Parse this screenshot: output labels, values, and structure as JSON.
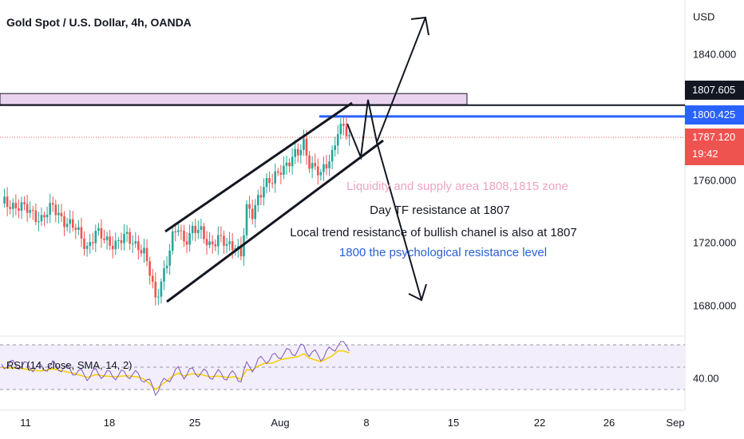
{
  "header": {
    "title": "Gold Spot / U.S. Dollar, 4h, OANDA"
  },
  "price_axis": {
    "currency": "USD",
    "ticks": [
      "1840.000",
      "1760.000",
      "1720.000",
      "1680.000"
    ],
    "tags": {
      "black": "1807.605",
      "blue": "1800.425",
      "red_price": "1787.120",
      "red_time": "19:42"
    },
    "rsi_tick": "40.00"
  },
  "time_axis": {
    "labels": [
      "11",
      "18",
      "25",
      "Aug",
      "8",
      "15",
      "22",
      "26",
      "Sep"
    ]
  },
  "rsi": {
    "label": "RSI (14, close, SMA, 14, 2)"
  },
  "annotations": {
    "liquidity": "Liquidity and supply area 1808,1815 zone",
    "day_tf": "Day TF resistance at 1807",
    "local_trend": "Local trend resistance of bullish chanel is also at 1807",
    "psych": "1800 the psychological resistance level"
  },
  "colors": {
    "up": "#26a69a",
    "down": "#ef5350",
    "blue_line": "#2962ff",
    "supply_zone": "#e9d3ef",
    "rsi_line": "#7e57c2",
    "rsi_sma": "#f5d000",
    "liquidity_text": "#f0a3c4",
    "psych_text": "#2a5fd6"
  },
  "chart_data": {
    "type": "candlestick",
    "symbol": "Gold Spot / U.S. Dollar",
    "interval": "4h",
    "y_ticks": [
      1840,
      1760,
      1720,
      1680
    ],
    "levels": {
      "black": 1807.605,
      "blue": 1800.425,
      "last": 1787.12
    },
    "supply_zone": [
      1808,
      1815
    ],
    "x_labels": [
      "11",
      "18",
      "25",
      "Aug",
      "8",
      "15",
      "22",
      "26",
      "Sep"
    ],
    "close_path": [
      [
        0,
        1745
      ],
      [
        6,
        1744
      ],
      [
        10,
        1739
      ],
      [
        14,
        1736
      ],
      [
        18,
        1742
      ],
      [
        22,
        1735
      ],
      [
        26,
        1728
      ],
      [
        30,
        1718
      ],
      [
        33,
        1726
      ],
      [
        36,
        1722
      ],
      [
        40,
        1720
      ],
      [
        44,
        1723
      ],
      [
        48,
        1719
      ],
      [
        50,
        1713
      ],
      [
        52,
        1700
      ],
      [
        54,
        1684
      ],
      [
        56,
        1697
      ],
      [
        58,
        1708
      ],
      [
        60,
        1722
      ],
      [
        62,
        1730
      ],
      [
        64,
        1722
      ],
      [
        67,
        1728
      ],
      [
        70,
        1726
      ],
      [
        73,
        1720
      ],
      [
        76,
        1722
      ],
      [
        79,
        1718
      ],
      [
        82,
        1720
      ],
      [
        84,
        1712
      ],
      [
        86,
        1740
      ],
      [
        88,
        1738
      ],
      [
        90,
        1750
      ],
      [
        92,
        1757
      ],
      [
        95,
        1758
      ],
      [
        98,
        1768
      ],
      [
        101,
        1772
      ],
      [
        104,
        1776
      ],
      [
        106,
        1784
      ],
      [
        108,
        1772
      ],
      [
        110,
        1767
      ],
      [
        112,
        1762
      ],
      [
        114,
        1770
      ],
      [
        116,
        1778
      ],
      [
        118,
        1792
      ],
      [
        120,
        1792
      ],
      [
        122,
        1786
      ]
    ],
    "rsi_ticks": [
      40
    ]
  }
}
